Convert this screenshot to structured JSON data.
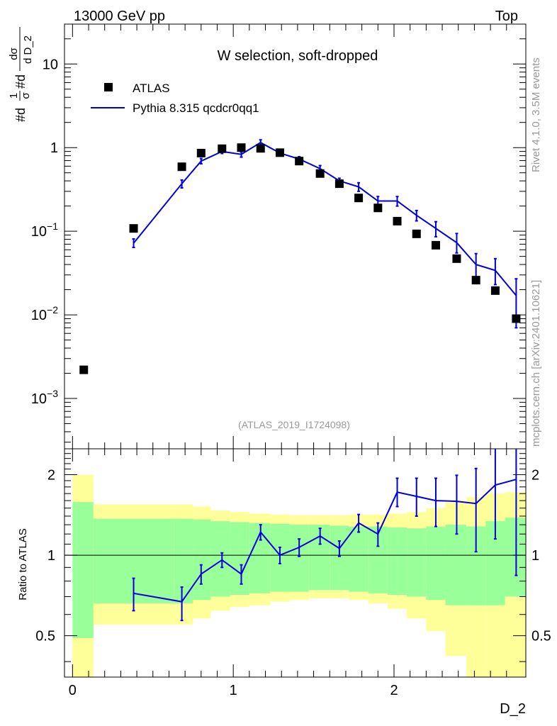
{
  "header": {
    "left_text": "13000 GeV pp",
    "right_text": "Top"
  },
  "side_labels": {
    "rivet": "Rivet 4.1.0,  3.5M events",
    "mcplots": "mcplots.cern.ch [arXiv:2401.10621]"
  },
  "colors": {
    "mc_line": "#0000dd",
    "data_marker": "#000000",
    "band_inner": "#99ff99",
    "band_outer": "#ffff99",
    "watermark": "#999999"
  },
  "chart_data": [
    {
      "type": "scatter",
      "panel": "main",
      "title": "W selection, soft-dropped",
      "watermark": "(ATLAS_2019_I1724098)",
      "ylabel": "#d(1/σ) #dσ/d D_2",
      "ylabel_parts": [
        "#d",
        "1",
        "σ",
        "#d",
        "dσ",
        "d D_2"
      ],
      "xlabel": "",
      "yscale": "log",
      "xlim": [
        -0.05,
        2.82
      ],
      "ylim": [
        0.00025,
        30
      ],
      "yticks": [
        {
          "value": 0.001,
          "base": "10",
          "exp": "−3"
        },
        {
          "value": 0.01,
          "base": "10",
          "exp": "−2"
        },
        {
          "value": 0.1,
          "base": "10",
          "exp": "−1"
        },
        {
          "value": 1,
          "base": "1",
          "exp": ""
        },
        {
          "value": 10,
          "base": "10",
          "exp": ""
        }
      ],
      "legend": {
        "position": "top-left",
        "entries": [
          "ATLAS",
          "Pythia 8.315 qcdcr0qq1"
        ]
      },
      "series": [
        {
          "name": "ATLAS",
          "kind": "markers",
          "x": [
            0.07,
            0.38,
            0.68,
            0.8,
            0.93,
            1.05,
            1.17,
            1.29,
            1.41,
            1.54,
            1.66,
            1.78,
            1.9,
            2.02,
            2.14,
            2.26,
            2.39,
            2.51,
            2.63,
            2.76
          ],
          "y": [
            0.0022,
            0.108,
            0.59,
            0.86,
            0.97,
            1.0,
            0.98,
            0.87,
            0.69,
            0.49,
            0.37,
            0.25,
            0.19,
            0.132,
            0.093,
            0.068,
            0.047,
            0.026,
            0.0195,
            0.009
          ]
        },
        {
          "name": "Pythia 8.315 qcdcr0qq1",
          "kind": "line",
          "x": [
            0.38,
            0.68,
            0.8,
            0.93,
            1.05,
            1.17,
            1.29,
            1.41,
            1.54,
            1.66,
            1.78,
            1.9,
            2.02,
            2.14,
            2.26,
            2.39,
            2.51,
            2.63,
            2.76
          ],
          "y": [
            0.072,
            0.37,
            0.69,
            0.9,
            0.83,
            1.15,
            0.86,
            0.73,
            0.56,
            0.4,
            0.34,
            0.23,
            0.23,
            0.155,
            0.108,
            0.073,
            0.04,
            0.034,
            0.017
          ],
          "err_lo": [
            0.064,
            0.33,
            0.64,
            0.85,
            0.77,
            1.07,
            0.81,
            0.68,
            0.52,
            0.37,
            0.3,
            0.2,
            0.2,
            0.133,
            0.086,
            0.055,
            0.028,
            0.023,
            0.007
          ],
          "err_hi": [
            0.081,
            0.41,
            0.74,
            0.95,
            0.89,
            1.24,
            0.91,
            0.78,
            0.61,
            0.43,
            0.38,
            0.26,
            0.26,
            0.177,
            0.13,
            0.094,
            0.054,
            0.047,
            0.027
          ]
        }
      ]
    },
    {
      "type": "line",
      "panel": "ratio",
      "ylabel": "Ratio to ATLAS",
      "xlabel": "D_2",
      "yscale": "log",
      "xlim": [
        -0.05,
        2.82
      ],
      "ylim": [
        0.35,
        2.5
      ],
      "yticks": [
        0.5,
        1,
        2
      ],
      "xticks": [
        0,
        1,
        2
      ],
      "bands": {
        "edges": [
          0.0,
          0.13,
          0.63,
          0.75,
          0.86,
          0.98,
          1.1,
          1.23,
          1.35,
          1.47,
          1.6,
          1.72,
          1.84,
          1.96,
          2.08,
          2.2,
          2.32,
          2.45,
          2.57,
          2.69,
          2.82
        ],
        "inner_lo": [
          0.49,
          0.66,
          0.66,
          0.68,
          0.7,
          0.71,
          0.72,
          0.73,
          0.73,
          0.74,
          0.74,
          0.73,
          0.72,
          0.71,
          0.7,
          0.68,
          0.65,
          0.65,
          0.65,
          0.7
        ],
        "inner_hi": [
          1.58,
          1.37,
          1.37,
          1.36,
          1.34,
          1.33,
          1.32,
          1.31,
          1.3,
          1.3,
          1.29,
          1.28,
          1.28,
          1.27,
          1.26,
          1.28,
          1.3,
          1.28,
          1.34,
          1.38
        ],
        "outer_lo": [
          0.25,
          0.55,
          0.55,
          0.58,
          0.62,
          0.64,
          0.65,
          0.67,
          0.68,
          0.69,
          0.69,
          0.68,
          0.66,
          0.63,
          0.58,
          0.52,
          0.42,
          0.35,
          0.35,
          0.35
        ],
        "outer_hi": [
          2.0,
          1.55,
          1.55,
          1.52,
          1.47,
          1.45,
          1.43,
          1.42,
          1.41,
          1.41,
          1.41,
          1.42,
          1.42,
          1.43,
          1.45,
          1.5,
          1.58,
          1.65,
          1.7,
          1.72
        ]
      },
      "series": [
        {
          "name": "Pythia 8.315 qcdcr0qq1",
          "x": [
            0.38,
            0.68,
            0.8,
            0.93,
            1.05,
            1.17,
            1.29,
            1.41,
            1.54,
            1.66,
            1.78,
            1.9,
            2.02,
            2.14,
            2.26,
            2.39,
            2.51,
            2.63,
            2.76
          ],
          "y": [
            0.72,
            0.67,
            0.85,
            0.96,
            0.85,
            1.22,
            1.0,
            1.07,
            1.18,
            1.06,
            1.32,
            1.2,
            1.72,
            1.66,
            1.6,
            1.59,
            1.56,
            1.83,
            1.92
          ],
          "err_lo": [
            0.62,
            0.57,
            0.78,
            0.9,
            0.78,
            1.14,
            0.93,
            0.99,
            1.1,
            0.99,
            1.22,
            1.08,
            1.52,
            1.4,
            1.28,
            1.2,
            1.03,
            1.15,
            0.84
          ],
          "err_hi": [
            0.82,
            0.76,
            0.92,
            1.02,
            0.92,
            1.3,
            1.07,
            1.15,
            1.26,
            1.13,
            1.42,
            1.32,
            1.94,
            1.94,
            1.94,
            1.99,
            2.11,
            2.6,
            2.6
          ]
        }
      ]
    }
  ]
}
